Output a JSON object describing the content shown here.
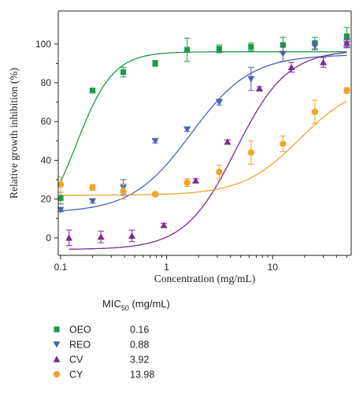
{
  "chart_data": {
    "type": "scatter",
    "xlabel": "Concentration (mg/mL)",
    "ylabel": "Relative growth inhibition (%)",
    "xscale": "log",
    "xlim": [
      0.095,
      55
    ],
    "ylim": [
      -9,
      117
    ],
    "xticks": [
      0.1,
      1,
      10
    ],
    "xtick_labels": [
      "0.1",
      "1",
      "10"
    ],
    "yticks": [
      0,
      20,
      40,
      60,
      80,
      100
    ],
    "ytick_labels": [
      "0",
      "20",
      "40",
      "60",
      "80",
      "100"
    ],
    "grid": false,
    "legend_placement": "bottom-left, below plot",
    "legend_title_main": "MIC",
    "legend_title_sub": "50",
    "legend_title_unit": " (mg/mL)",
    "series": [
      {
        "name": "OEO",
        "mic50": "0.16",
        "marker": "square",
        "color": "#1e9a49",
        "x": [
          0.1,
          0.2,
          0.39,
          0.78,
          1.56,
          3.13,
          6.25,
          12.5,
          25,
          50
        ],
        "y": [
          20.5,
          76,
          85.5,
          90,
          97,
          97.5,
          98.5,
          99.5,
          100.5,
          104
        ],
        "err": [
          3,
          1,
          2.5,
          1.5,
          6,
          2,
          2,
          4,
          3,
          4.5
        ],
        "fit": {
          "bottom": 0,
          "top": 96,
          "ec50": 0.14,
          "hill": 2.5
        }
      },
      {
        "name": "REO",
        "mic50": "0.88",
        "marker": "triangle-down",
        "color": "#4a62b0",
        "x": [
          0.1,
          0.2,
          0.39,
          0.78,
          1.56,
          3.13,
          6.25,
          12.5,
          25,
          50
        ],
        "y": [
          14.5,
          19,
          26,
          50,
          56,
          70,
          82,
          95,
          99,
          100
        ],
        "err": [
          1,
          1,
          4,
          1,
          1,
          1.5,
          6,
          4,
          2,
          2
        ],
        "fit": {
          "bottom": 13,
          "top": 94.5,
          "ec50": 1.7,
          "hill": 1.55
        }
      },
      {
        "name": "CV",
        "mic50": "3.92",
        "marker": "triangle",
        "color": "#7a2d8e",
        "x": [
          0.12,
          0.24,
          0.47,
          0.94,
          1.88,
          3.75,
          7.5,
          15,
          30,
          50
        ],
        "y": [
          0,
          0.5,
          1,
          6.5,
          29.5,
          49.5,
          77,
          88,
          90.5,
          100.5
        ],
        "err": [
          4,
          3,
          3,
          1,
          1,
          1,
          1,
          2.5,
          2.5,
          2
        ],
        "fit": {
          "bottom": -6,
          "top": 97,
          "ec50": 4.5,
          "hill": 1.8
        }
      },
      {
        "name": "CY",
        "mic50": "13.98",
        "marker": "circle",
        "color": "#f0a42c",
        "x": [
          0.1,
          0.2,
          0.39,
          0.78,
          1.56,
          3.13,
          6.25,
          12.5,
          25,
          50
        ],
        "y": [
          27.5,
          26,
          24,
          22.5,
          28.5,
          34,
          44,
          48.5,
          65,
          76
        ],
        "err": [
          4,
          1.5,
          4,
          1,
          2,
          3.5,
          6,
          4,
          6,
          1.5
        ],
        "fit": {
          "bottom": 22,
          "top": 80,
          "ec50": 18,
          "hill": 1.6
        }
      }
    ]
  }
}
